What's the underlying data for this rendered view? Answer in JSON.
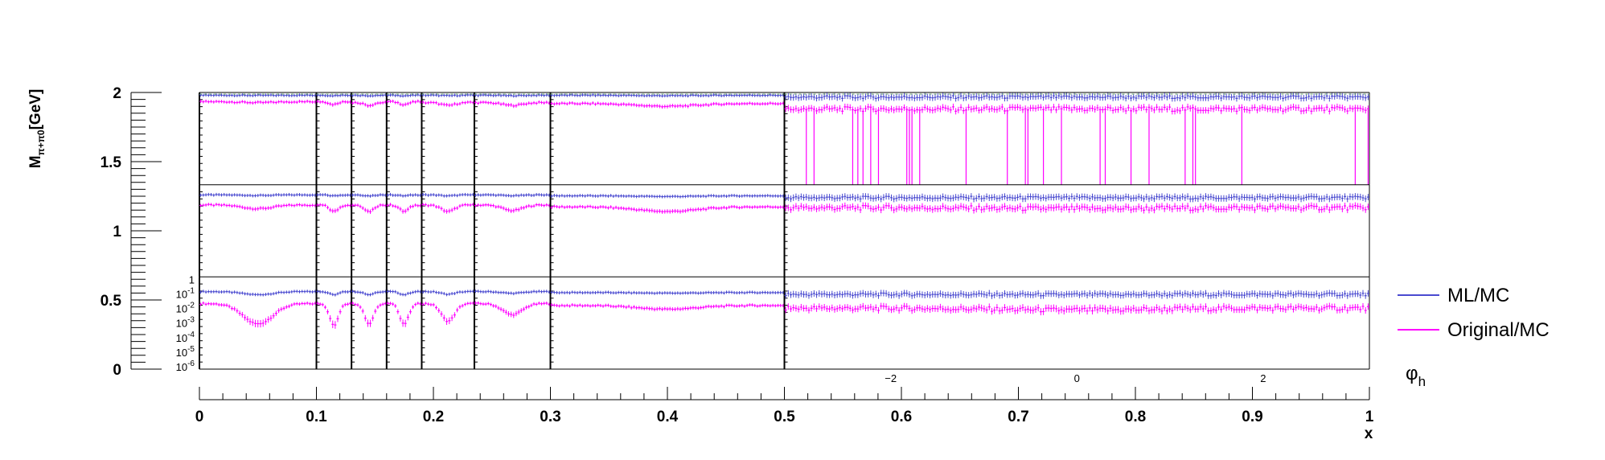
{
  "chart_data": {
    "type": "scatter",
    "title": "",
    "ylabel": "M_{π+π0}[GeV]",
    "xlabel": "x",
    "inner_xlabel": "φ_h",
    "grid": false,
    "legend_position": "right",
    "outer_y_axis": {
      "range": [
        0,
        2
      ],
      "ticks": [
        "0",
        "0.5",
        "1",
        "1.5",
        "2"
      ]
    },
    "outer_x_axis": {
      "range": [
        0,
        1
      ],
      "ticks": [
        "0",
        "0.1",
        "0.2",
        "0.3",
        "0.4",
        "0.5",
        "0.6",
        "0.7",
        "0.8",
        "0.9",
        "1"
      ]
    },
    "inner_log_axis": {
      "range": [
        1e-06,
        1
      ],
      "ticks": [
        "10^-6",
        "10^-5",
        "10^-4",
        "10^-3",
        "10^-2",
        "10^-1",
        "1"
      ]
    },
    "inner_phi_axis": {
      "range": [
        -3.14159,
        3.14159
      ],
      "ticks": [
        "−2",
        "0",
        "2"
      ]
    },
    "x_bin_edges": [
      0,
      0.1,
      0.13,
      0.16,
      0.19,
      0.235,
      0.3,
      0.5,
      1.0
    ],
    "y_bin_edges": [
      0,
      0.667,
      1.333,
      2.0
    ],
    "cells": [
      {
        "y_bin": 2,
        "x_bin": 0,
        "ml_mc": 0.97,
        "orig_mc": 0.9,
        "dip": 0.01
      },
      {
        "y_bin": 2,
        "x_bin": 1,
        "ml_mc": 0.97,
        "orig_mc": 0.9,
        "dip": 0.03
      },
      {
        "y_bin": 2,
        "x_bin": 2,
        "ml_mc": 0.97,
        "orig_mc": 0.89,
        "dip": 0.03
      },
      {
        "y_bin": 2,
        "x_bin": 3,
        "ml_mc": 0.97,
        "orig_mc": 0.9,
        "dip": 0.03
      },
      {
        "y_bin": 2,
        "x_bin": 4,
        "ml_mc": 0.97,
        "orig_mc": 0.89,
        "dip": 0.03
      },
      {
        "y_bin": 2,
        "x_bin": 5,
        "ml_mc": 0.97,
        "orig_mc": 0.89,
        "dip": 0.03
      },
      {
        "y_bin": 2,
        "x_bin": 6,
        "ml_mc": 0.97,
        "orig_mc": 0.88,
        "dip": 0.03
      },
      {
        "y_bin": 2,
        "x_bin": 7,
        "ml_mc": 0.95,
        "orig_mc": 0.82,
        "dip": 0.0
      },
      {
        "y_bin": 1,
        "x_bin": 0,
        "ml_mc": 0.89,
        "orig_mc": 0.78,
        "dip": 0.04
      },
      {
        "y_bin": 1,
        "x_bin": 1,
        "ml_mc": 0.89,
        "orig_mc": 0.78,
        "dip": 0.07
      },
      {
        "y_bin": 1,
        "x_bin": 2,
        "ml_mc": 0.89,
        "orig_mc": 0.78,
        "dip": 0.07
      },
      {
        "y_bin": 1,
        "x_bin": 3,
        "ml_mc": 0.89,
        "orig_mc": 0.78,
        "dip": 0.07
      },
      {
        "y_bin": 1,
        "x_bin": 4,
        "ml_mc": 0.89,
        "orig_mc": 0.78,
        "dip": 0.07
      },
      {
        "y_bin": 1,
        "x_bin": 5,
        "ml_mc": 0.89,
        "orig_mc": 0.78,
        "dip": 0.06
      },
      {
        "y_bin": 1,
        "x_bin": 6,
        "ml_mc": 0.88,
        "orig_mc": 0.76,
        "dip": 0.05
      },
      {
        "y_bin": 1,
        "x_bin": 7,
        "ml_mc": 0.86,
        "orig_mc": 0.75,
        "dip": 0.01
      },
      {
        "y_bin": 0,
        "x_bin": 0,
        "ml_mc": 0.84,
        "orig_mc": 0.71,
        "dip": 0.22
      },
      {
        "y_bin": 0,
        "x_bin": 1,
        "ml_mc": 0.84,
        "orig_mc": 0.71,
        "dip": 0.24
      },
      {
        "y_bin": 0,
        "x_bin": 2,
        "ml_mc": 0.84,
        "orig_mc": 0.71,
        "dip": 0.22
      },
      {
        "y_bin": 0,
        "x_bin": 3,
        "ml_mc": 0.84,
        "orig_mc": 0.71,
        "dip": 0.22
      },
      {
        "y_bin": 0,
        "x_bin": 4,
        "ml_mc": 0.84,
        "orig_mc": 0.71,
        "dip": 0.19
      },
      {
        "y_bin": 0,
        "x_bin": 5,
        "ml_mc": 0.84,
        "orig_mc": 0.71,
        "dip": 0.12
      },
      {
        "y_bin": 0,
        "x_bin": 6,
        "ml_mc": 0.83,
        "orig_mc": 0.69,
        "dip": 0.04
      },
      {
        "y_bin": 0,
        "x_bin": 7,
        "ml_mc": 0.81,
        "orig_mc": 0.66,
        "dip": 0.02
      }
    ],
    "series": [
      {
        "name": "ML/MC",
        "color": "#4a4ad0"
      },
      {
        "name": "Original/MC",
        "color": "#ff00ff"
      }
    ]
  }
}
